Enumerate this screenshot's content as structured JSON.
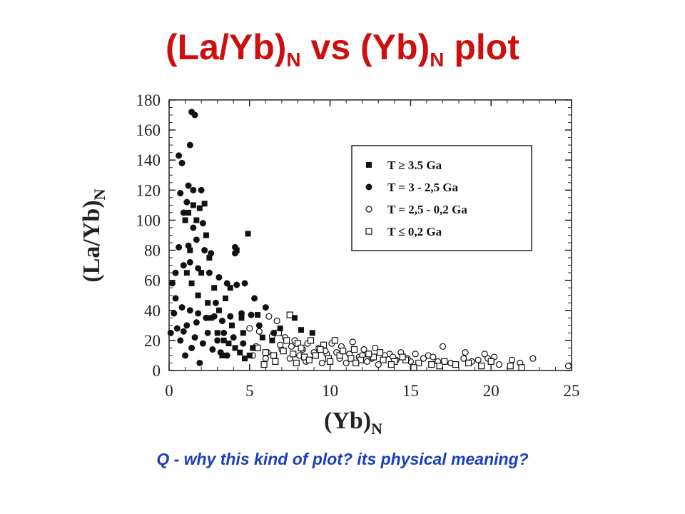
{
  "slide": {
    "title_main": "(La/Yb)",
    "title_sub1": "N",
    "title_mid": " vs (Yb)",
    "title_sub2": "N",
    "title_end": " plot",
    "question": "Q - why this kind of plot? its physical meaning?"
  },
  "colors": {
    "title": "#cc1010",
    "question": "#1a3fb8",
    "ink": "#111111"
  },
  "chart_data": {
    "type": "scatter",
    "xlabel_main": "(Yb)",
    "xlabel_sub": "N",
    "ylabel_main": "(La/Yb)",
    "ylabel_sub": "N",
    "xlim": [
      0,
      25
    ],
    "ylim": [
      0,
      180
    ],
    "x_ticks": [
      0,
      5,
      10,
      15,
      20,
      25
    ],
    "y_ticks": [
      0,
      20,
      40,
      60,
      80,
      100,
      120,
      140,
      160,
      180
    ],
    "grid": false,
    "legend_position": "top-right",
    "series": [
      {
        "name": "T ≥ 3.5 Ga",
        "marker": "filled-square",
        "points": [
          [
            1.2,
            105
          ],
          [
            1.5,
            110
          ],
          [
            1.9,
            108
          ],
          [
            2.2,
            111
          ],
          [
            1.7,
            100
          ],
          [
            2.3,
            90
          ],
          [
            1.0,
            100
          ],
          [
            2.5,
            75
          ],
          [
            1.3,
            80
          ],
          [
            2.0,
            65
          ],
          [
            4.2,
            80
          ],
          [
            4.9,
            91
          ],
          [
            1.4,
            58
          ],
          [
            2.8,
            55
          ],
          [
            3.5,
            48
          ],
          [
            3.8,
            55
          ],
          [
            4.5,
            35
          ],
          [
            2.4,
            45
          ],
          [
            3.1,
            40
          ],
          [
            3.9,
            30
          ],
          [
            4.6,
            25
          ],
          [
            3.4,
            20
          ],
          [
            5.2,
            15
          ],
          [
            5.8,
            22
          ],
          [
            6.4,
            20
          ],
          [
            7.8,
            35
          ],
          [
            8.2,
            27
          ],
          [
            8.9,
            25
          ],
          [
            6.9,
            28
          ],
          [
            5.5,
            37
          ],
          [
            1.1,
            65
          ],
          [
            1.8,
            50
          ],
          [
            2.6,
            35
          ],
          [
            3.0,
            25
          ],
          [
            3.7,
            18
          ],
          [
            4.1,
            15
          ],
          [
            4.4,
            12
          ],
          [
            5.0,
            10
          ],
          [
            4.7,
            8
          ],
          [
            3.3,
            10
          ]
        ]
      },
      {
        "name": "T = 3 - 2,5 Ga",
        "marker": "filled-circle",
        "points": [
          [
            1.4,
            172
          ],
          [
            1.6,
            170
          ],
          [
            1.3,
            150
          ],
          [
            0.6,
            143
          ],
          [
            0.8,
            138
          ],
          [
            1.2,
            123
          ],
          [
            1.5,
            120
          ],
          [
            2.0,
            120
          ],
          [
            0.7,
            118
          ],
          [
            1.1,
            112
          ],
          [
            0.9,
            105
          ],
          [
            1.5,
            95
          ],
          [
            2.1,
            98
          ],
          [
            0.6,
            82
          ],
          [
            1.2,
            83
          ],
          [
            1.7,
            87
          ],
          [
            2.6,
            78
          ],
          [
            4.1,
            82
          ],
          [
            4.1,
            78
          ],
          [
            2.2,
            80
          ],
          [
            0.9,
            70
          ],
          [
            1.3,
            72
          ],
          [
            1.8,
            68
          ],
          [
            2.5,
            65
          ],
          [
            3.1,
            62
          ],
          [
            3.6,
            58
          ],
          [
            4.2,
            57
          ],
          [
            4.7,
            58
          ],
          [
            5.3,
            48
          ],
          [
            6.0,
            42
          ],
          [
            0.2,
            58
          ],
          [
            0.4,
            48
          ],
          [
            0.8,
            42
          ],
          [
            1.3,
            40
          ],
          [
            1.8,
            38
          ],
          [
            2.3,
            35
          ],
          [
            2.8,
            36
          ],
          [
            3.3,
            33
          ],
          [
            3.8,
            36
          ],
          [
            4.5,
            38
          ],
          [
            5.1,
            37
          ],
          [
            0.1,
            25
          ],
          [
            0.5,
            28
          ],
          [
            0.9,
            26
          ],
          [
            1.6,
            22
          ],
          [
            2.1,
            18
          ],
          [
            2.7,
            14
          ],
          [
            3.2,
            12
          ],
          [
            3.6,
            10
          ],
          [
            1.9,
            5
          ],
          [
            1.0,
            10
          ],
          [
            0.7,
            20
          ],
          [
            1.4,
            15
          ],
          [
            2.4,
            25
          ],
          [
            3.0,
            20
          ],
          [
            1.1,
            30
          ],
          [
            1.7,
            32
          ],
          [
            0.3,
            38
          ],
          [
            2.9,
            45
          ],
          [
            3.4,
            25
          ],
          [
            4.0,
            22
          ],
          [
            4.6,
            18
          ],
          [
            5.6,
            30
          ],
          [
            6.5,
            25
          ],
          [
            0.4,
            65
          ]
        ]
      },
      {
        "name": "T = 2,5 - 0,2 Ga",
        "marker": "open-circle",
        "points": [
          [
            6.2,
            36
          ],
          [
            6.7,
            33
          ],
          [
            5.0,
            28
          ],
          [
            5.6,
            26
          ],
          [
            6.4,
            23
          ],
          [
            7.2,
            22
          ],
          [
            7.8,
            20
          ],
          [
            8.6,
            18
          ],
          [
            9.3,
            15
          ],
          [
            10.1,
            18
          ],
          [
            10.7,
            16
          ],
          [
            11.4,
            19
          ],
          [
            12.1,
            14
          ],
          [
            12.8,
            15
          ],
          [
            13.7,
            11
          ],
          [
            14.4,
            12
          ],
          [
            15.3,
            11
          ],
          [
            16.1,
            10
          ],
          [
            17.0,
            16
          ],
          [
            18.4,
            12
          ],
          [
            19.6,
            11
          ],
          [
            20.2,
            9
          ],
          [
            21.3,
            7
          ],
          [
            22.6,
            8
          ],
          [
            24.8,
            3
          ],
          [
            6.1,
            12
          ],
          [
            7.0,
            14
          ],
          [
            8.1,
            10
          ],
          [
            9.0,
            12
          ],
          [
            9.8,
            11
          ],
          [
            10.6,
            8
          ],
          [
            11.8,
            9
          ],
          [
            12.6,
            8
          ],
          [
            13.4,
            10
          ],
          [
            14.1,
            7
          ],
          [
            15.0,
            6
          ],
          [
            15.8,
            8
          ],
          [
            16.7,
            6
          ],
          [
            17.5,
            5
          ],
          [
            18.3,
            8
          ],
          [
            19.2,
            7
          ],
          [
            20.5,
            4
          ],
          [
            21.8,
            5
          ],
          [
            7.5,
            8
          ],
          [
            8.5,
            6
          ],
          [
            9.5,
            5
          ],
          [
            11.0,
            5
          ],
          [
            12.3,
            6
          ],
          [
            13.0,
            4
          ],
          [
            5.4,
            16
          ],
          [
            6.9,
            17
          ],
          [
            7.6,
            16
          ],
          [
            8.3,
            14
          ],
          [
            9.7,
            13
          ],
          [
            10.4,
            12
          ],
          [
            11.2,
            11
          ],
          [
            12.0,
            10
          ],
          [
            13.9,
            9
          ],
          [
            14.8,
            8
          ],
          [
            16.4,
            9
          ],
          [
            18.8,
            6
          ],
          [
            19.8,
            8
          ],
          [
            5.2,
            10
          ],
          [
            6.0,
            8
          ]
        ]
      },
      {
        "name": "T ≤ 0,2 Ga",
        "marker": "open-square",
        "points": [
          [
            7.5,
            37
          ],
          [
            6.8,
            25
          ],
          [
            7.3,
            20
          ],
          [
            8.0,
            18
          ],
          [
            8.8,
            20
          ],
          [
            9.6,
            17
          ],
          [
            10.3,
            20
          ],
          [
            5.5,
            15
          ],
          [
            6.0,
            12
          ],
          [
            6.5,
            10
          ],
          [
            7.1,
            13
          ],
          [
            7.7,
            11
          ],
          [
            8.4,
            9
          ],
          [
            9.1,
            10
          ],
          [
            9.9,
            8
          ],
          [
            10.6,
            10
          ],
          [
            11.3,
            8
          ],
          [
            11.9,
            7
          ],
          [
            12.7,
            9
          ],
          [
            13.3,
            7
          ],
          [
            14.0,
            6
          ],
          [
            14.7,
            7
          ],
          [
            15.5,
            5
          ],
          [
            16.3,
            4
          ],
          [
            17.1,
            6
          ],
          [
            17.8,
            4
          ],
          [
            18.6,
            5
          ],
          [
            19.4,
            3
          ],
          [
            20.0,
            6
          ],
          [
            21.2,
            3
          ],
          [
            21.9,
            2
          ],
          [
            15.2,
            2
          ],
          [
            16.8,
            3
          ],
          [
            13.8,
            4
          ],
          [
            11.6,
            5
          ],
          [
            10.0,
            6
          ],
          [
            8.7,
            7
          ],
          [
            7.9,
            5
          ],
          [
            6.6,
            6
          ],
          [
            5.9,
            4
          ],
          [
            12.4,
            11
          ],
          [
            13.1,
            12
          ],
          [
            9.4,
            14
          ],
          [
            10.8,
            13
          ],
          [
            11.5,
            14
          ],
          [
            8.2,
            15
          ],
          [
            14.5,
            9
          ]
        ]
      }
    ]
  }
}
